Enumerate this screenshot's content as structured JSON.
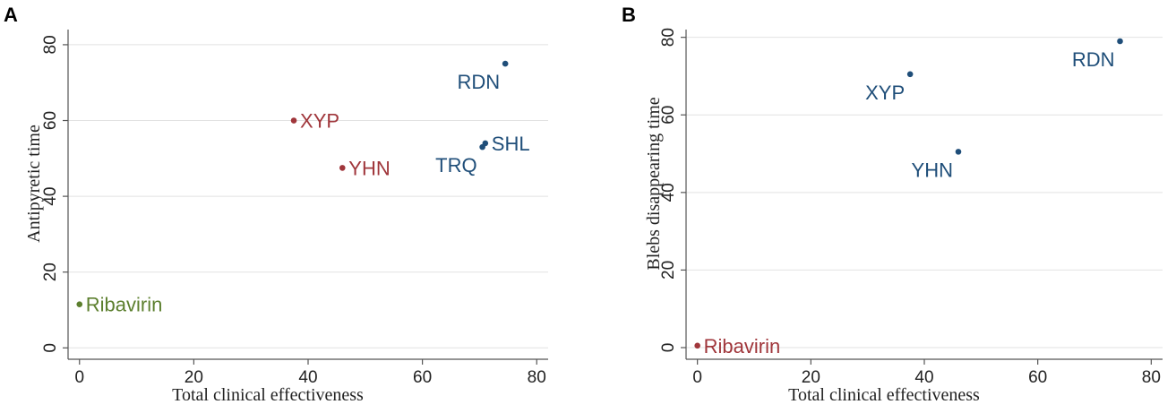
{
  "colors": {
    "blue": "#1f4e79",
    "red": "#a0363b",
    "green": "#5c7f2e"
  },
  "chart_data": [
    {
      "type": "scatter",
      "panel_label": "A",
      "xlabel": "Total clinical effectiveness",
      "ylabel": "Antipyretic time",
      "xlim": [
        -2,
        82
      ],
      "ylim": [
        -3,
        84
      ],
      "xticks": [
        "0",
        "20",
        "40",
        "60",
        "80"
      ],
      "yticks": [
        "0",
        "20",
        "40",
        "60",
        "80"
      ],
      "grid": true,
      "points": [
        {
          "label": "RDN",
          "x": 74.5,
          "y": 75,
          "color": "#1f4e79",
          "label_pos": "lower-left"
        },
        {
          "label": "SHL",
          "x": 71,
          "y": 54,
          "color": "#1f4e79",
          "label_pos": "right"
        },
        {
          "label": "TRQ",
          "x": 70.5,
          "y": 53,
          "color": "#1f4e79",
          "label_pos": "lower-left"
        },
        {
          "label": "XYP",
          "x": 37.5,
          "y": 60,
          "color": "#a0363b",
          "label_pos": "right"
        },
        {
          "label": "YHN",
          "x": 46,
          "y": 47.5,
          "color": "#a0363b",
          "label_pos": "right"
        },
        {
          "label": "Ribavirin",
          "x": 0,
          "y": 11.5,
          "color": "#5c7f2e",
          "label_pos": "right"
        }
      ]
    },
    {
      "type": "scatter",
      "panel_label": "B",
      "xlabel": "Total clinical effectiveness",
      "ylabel": "Blebs disappearing time",
      "xlim": [
        -2,
        82
      ],
      "ylim": [
        -3,
        82
      ],
      "xticks": [
        "0",
        "20",
        "40",
        "60",
        "80"
      ],
      "yticks": [
        "0",
        "20",
        "40",
        "60",
        "80"
      ],
      "grid": true,
      "points": [
        {
          "label": "RDN",
          "x": 74.5,
          "y": 79,
          "color": "#1f4e79",
          "label_pos": "lower-left"
        },
        {
          "label": "XYP",
          "x": 37.5,
          "y": 70.5,
          "color": "#1f4e79",
          "label_pos": "lower-left"
        },
        {
          "label": "YHN",
          "x": 46,
          "y": 50.5,
          "color": "#1f4e79",
          "label_pos": "lower-left"
        },
        {
          "label": "Ribavirin",
          "x": 0,
          "y": 0.5,
          "color": "#a0363b",
          "label_pos": "right"
        }
      ]
    }
  ]
}
